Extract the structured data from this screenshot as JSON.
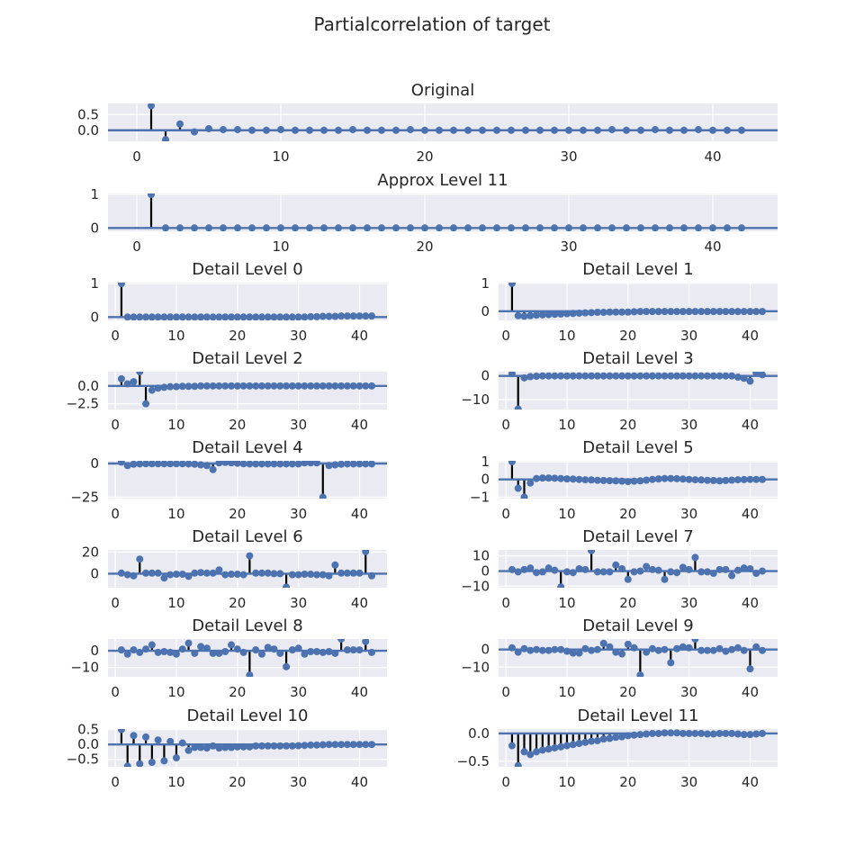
{
  "figure": {
    "title": "Partialcorrelation of target"
  },
  "style": {
    "panel_bg": "#EAEAF2",
    "grid": "#FFFFFF",
    "marker": "#4C72B0",
    "baseline": "#4C72B0",
    "stem": "#000000"
  },
  "chart_data": [
    {
      "type": "stem",
      "title": "Original",
      "xlim": [
        -2,
        44.5
      ],
      "ylim": [
        -0.35,
        0.85
      ],
      "xticks": [
        0,
        10,
        20,
        30,
        40
      ],
      "yticks": [
        0.5,
        0.0
      ],
      "ytick_labels": [
        "0.5",
        "0.0"
      ],
      "x_start": 1,
      "values": [
        0.78,
        -0.3,
        0.2,
        -0.05,
        0.05,
        0.02,
        0.02,
        0.0,
        0.0,
        0.02,
        0.0,
        0.0,
        0.0,
        0.0,
        0.02,
        0.0,
        0.0,
        0.0,
        0.02,
        0.0,
        0.0,
        0.0,
        0.0,
        0.0,
        0.0,
        0.0,
        0.0,
        0.0,
        0.0,
        0.0,
        0.0,
        0.0,
        0.02,
        0.0,
        0.0,
        0.02,
        0.0,
        0.0,
        0.02,
        0.0,
        0.0,
        0.0
      ]
    },
    {
      "type": "stem",
      "title": "Approx Level 11",
      "xlim": [
        -2,
        44.5
      ],
      "ylim": [
        -0.1,
        1.03
      ],
      "xticks": [
        0,
        10,
        20,
        30,
        40
      ],
      "yticks": [
        1,
        0
      ],
      "ytick_labels": [
        "1",
        "0"
      ],
      "x_start": 1,
      "values": [
        1.0,
        0,
        0,
        0,
        0,
        0,
        0,
        0,
        0,
        0,
        0,
        0,
        0,
        0,
        0,
        0,
        0,
        0,
        0,
        0,
        0,
        0,
        0,
        0,
        0,
        0,
        0,
        0,
        0,
        0,
        0,
        0,
        0,
        0,
        0,
        0,
        0,
        0,
        0,
        0,
        0,
        0
      ]
    },
    {
      "type": "stem",
      "title": "Detail Level 0",
      "xlim": [
        -1.2,
        44.5
      ],
      "ylim": [
        -0.1,
        1.03
      ],
      "xticks": [
        0,
        10,
        20,
        30,
        40
      ],
      "yticks": [
        1,
        0
      ],
      "ytick_labels": [
        "1",
        "0"
      ],
      "x_start": 1,
      "values": [
        1.0,
        0,
        0,
        0,
        0,
        0,
        0,
        0,
        0,
        0,
        0,
        0,
        0,
        0,
        0,
        0,
        0,
        0,
        0,
        0,
        0,
        0,
        0,
        0,
        0,
        0,
        0,
        0,
        0,
        0,
        0,
        0.01,
        0.01,
        0.02,
        0.02,
        0.02,
        0.03,
        0.03,
        0.03,
        0.03,
        0.03,
        0.03
      ]
    },
    {
      "type": "stem",
      "title": "Detail Level 1",
      "xlim": [
        -1.2,
        44.5
      ],
      "ylim": [
        -0.33,
        1.03
      ],
      "xticks": [
        0,
        10,
        20,
        30,
        40
      ],
      "yticks": [
        1,
        0
      ],
      "ytick_labels": [
        "1",
        "0"
      ],
      "x_start": 1,
      "values": [
        1.0,
        -0.16,
        -0.18,
        -0.16,
        -0.14,
        -0.13,
        -0.12,
        -0.11,
        -0.1,
        -0.09,
        -0.08,
        -0.07,
        -0.06,
        -0.05,
        -0.04,
        -0.04,
        -0.03,
        -0.03,
        -0.03,
        -0.03,
        -0.02,
        -0.01,
        -0.01,
        -0.01,
        -0.01,
        -0.01,
        -0.01,
        -0.01,
        -0.01,
        -0.01,
        -0.01,
        -0.01,
        -0.01,
        -0.01,
        -0.01,
        -0.01,
        -0.01,
        -0.01,
        -0.01,
        -0.01,
        -0.01,
        -0.01
      ]
    },
    {
      "type": "stem",
      "title": "Detail Level 2",
      "xlim": [
        -1.2,
        44.5
      ],
      "ylim": [
        -3.3,
        2.0
      ],
      "xticks": [
        0,
        10,
        20,
        30,
        40
      ],
      "yticks": [
        0.0,
        -2.5
      ],
      "ytick_labels": [
        "0.0",
        "−2.5"
      ],
      "x_start": 1,
      "values": [
        1.0,
        0.3,
        0.6,
        2.0,
        -2.5,
        -0.6,
        -0.3,
        -0.2,
        -0.1,
        -0.1,
        -0.05,
        -0.05,
        -0.05,
        0,
        0,
        0,
        0,
        0,
        0,
        0,
        0,
        0,
        0,
        0,
        0,
        0,
        0,
        0,
        0,
        0,
        0,
        0,
        0,
        0,
        0,
        0,
        0,
        0,
        0,
        0,
        0,
        0
      ]
    },
    {
      "type": "stem",
      "title": "Detail Level 3",
      "xlim": [
        -1.2,
        44.5
      ],
      "ylim": [
        -14.2,
        1.8
      ],
      "xticks": [
        0,
        10,
        20,
        30,
        40
      ],
      "yticks": [
        0,
        -10
      ],
      "ytick_labels": [
        "0",
        "−10"
      ],
      "x_start": 1,
      "values": [
        1.0,
        -14.0,
        -0.8,
        -0.3,
        -0.1,
        0,
        0,
        0,
        0,
        0,
        0,
        0,
        0,
        0,
        0,
        0,
        0,
        0,
        0,
        0,
        0,
        0,
        0,
        0,
        0,
        0,
        0,
        0,
        0,
        0,
        0,
        0,
        0,
        0,
        0,
        0,
        0,
        -0.5,
        -1.0,
        -2.2,
        1.3,
        0.5
      ]
    },
    {
      "type": "stem",
      "title": "Detail Level 4",
      "xlim": [
        -1.2,
        44.5
      ],
      "ylim": [
        -26,
        2.0
      ],
      "xticks": [
        0,
        10,
        20,
        30,
        40
      ],
      "yticks": [
        0,
        -25
      ],
      "ytick_labels": [
        "0",
        "−25"
      ],
      "x_start": 1,
      "values": [
        1.0,
        -1.5,
        -0.5,
        -0.3,
        -0.2,
        -0.2,
        -0.2,
        -0.2,
        -0.2,
        -0.2,
        -0.2,
        -0.3,
        -0.5,
        -1.0,
        -1.5,
        -4.5,
        0.5,
        0.8,
        0.5,
        0.2,
        -0.2,
        -0.3,
        -0.3,
        -0.3,
        -0.3,
        -0.3,
        -0.3,
        -0.3,
        -0.3,
        -0.3,
        0.5,
        0.5,
        0.5,
        -25.0,
        -1.5,
        -1.0,
        -0.5,
        -0.3,
        -0.3,
        -0.3,
        -0.3,
        -0.3
      ]
    },
    {
      "type": "stem",
      "title": "Detail Level 5",
      "xlim": [
        -1.2,
        44.5
      ],
      "ylim": [
        -1.08,
        1.05
      ],
      "xticks": [
        0,
        10,
        20,
        30,
        40
      ],
      "yticks": [
        1,
        0,
        -1
      ],
      "ytick_labels": [
        "1",
        "0",
        "−1"
      ],
      "x_start": 1,
      "values": [
        1.0,
        -0.5,
        -1.0,
        -0.2,
        0.05,
        0.08,
        0.08,
        0.07,
        0.05,
        0.03,
        0.02,
        0.0,
        -0.02,
        -0.03,
        -0.05,
        -0.06,
        -0.07,
        -0.08,
        -0.1,
        -0.12,
        -0.1,
        -0.08,
        -0.04,
        0.0,
        0.03,
        0.05,
        0.05,
        0.04,
        0.02,
        0.0,
        -0.02,
        -0.03,
        -0.05,
        -0.06,
        -0.08,
        -0.06,
        -0.04,
        -0.02,
        -0.01,
        0.0,
        0.0,
        0.0
      ]
    },
    {
      "type": "stem",
      "title": "Detail Level 6",
      "xlim": [
        -1.2,
        44.5
      ],
      "ylim": [
        -13,
        22
      ],
      "xticks": [
        0,
        10,
        20,
        30,
        40
      ],
      "yticks": [
        20,
        0
      ],
      "ytick_labels": [
        "20",
        "0"
      ],
      "x_start": 1,
      "values": [
        0.5,
        -1.0,
        -2.0,
        13.5,
        0.5,
        0.5,
        0.5,
        -4.0,
        -1.0,
        -0.5,
        -0.5,
        -2.5,
        0.5,
        1.0,
        0.5,
        0.5,
        3.5,
        -1.0,
        -0.5,
        -0.5,
        -1.0,
        16.5,
        0.5,
        0.5,
        0.5,
        0.0,
        0.0,
        -12.5,
        -1.0,
        -1.0,
        -0.5,
        -0.5,
        -1.0,
        -1.0,
        -2.0,
        8.0,
        0.5,
        0.5,
        0.5,
        0.5,
        20.5,
        -2.0
      ]
    },
    {
      "type": "stem",
      "title": "Detail Level 7",
      "xlim": [
        -1.2,
        44.5
      ],
      "ylim": [
        -11,
        14
      ],
      "xticks": [
        0,
        10,
        20,
        30,
        40
      ],
      "yticks": [
        10,
        0,
        -10
      ],
      "ytick_labels": [
        "10",
        "0",
        "−10"
      ],
      "x_start": 1,
      "values": [
        1.0,
        -0.5,
        1.0,
        2.0,
        -1.0,
        -0.5,
        2.0,
        0.5,
        -10.5,
        -0.5,
        -1.0,
        1.5,
        1.0,
        13.5,
        -0.5,
        -0.5,
        -0.5,
        4.0,
        1.5,
        -5.5,
        -0.5,
        0.0,
        3.0,
        1.0,
        0.5,
        -5.5,
        -0.5,
        -1.0,
        2.5,
        1.0,
        9.0,
        -0.5,
        -0.5,
        -1.5,
        1.0,
        1.0,
        -3.0,
        0.5,
        2.0,
        1.5,
        -1.5,
        0.0
      ]
    },
    {
      "type": "stem",
      "title": "Detail Level 8",
      "xlim": [
        -1.2,
        44.5
      ],
      "ylim": [
        -15.5,
        7
      ],
      "xticks": [
        0,
        10,
        20,
        30,
        40
      ],
      "yticks": [
        0,
        -10
      ],
      "ytick_labels": [
        "0",
        "−10"
      ],
      "x_start": 1,
      "values": [
        0.5,
        -2.0,
        0.5,
        -1.0,
        1.0,
        3.5,
        -1.0,
        -0.5,
        -1.0,
        -2.0,
        1.0,
        4.5,
        -1.5,
        2.5,
        1.5,
        -1.5,
        -1.5,
        -0.5,
        3.5,
        1.0,
        -1.0,
        -14.5,
        0.5,
        -2.0,
        2.0,
        1.0,
        -1.5,
        -9.5,
        0.5,
        1.5,
        -2.0,
        -0.5,
        -0.5,
        -1.0,
        -0.5,
        -1.5,
        7.0,
        0.5,
        0.5,
        0.5,
        5.5,
        -1.0
      ]
    },
    {
      "type": "stem",
      "title": "Detail Level 9",
      "xlim": [
        -1.2,
        44.5
      ],
      "ylim": [
        -15.5,
        6
      ],
      "xticks": [
        0,
        10,
        20,
        30,
        40
      ],
      "yticks": [
        0,
        -10
      ],
      "ytick_labels": [
        "0",
        "−10"
      ],
      "x_start": 1,
      "values": [
        1.0,
        -1.5,
        0.5,
        -0.5,
        0.0,
        -0.5,
        -0.5,
        0.0,
        0.0,
        -1.0,
        -2.0,
        -2.0,
        0.5,
        -0.5,
        0.0,
        3.5,
        1.5,
        -1.5,
        -2.5,
        3.0,
        1.0,
        -14.5,
        -1.5,
        0.5,
        -0.5,
        0.0,
        -7.5,
        0.5,
        1.5,
        1.0,
        6.0,
        -0.5,
        -0.5,
        -0.5,
        0.5,
        -1.0,
        0.0,
        1.0,
        -0.5,
        -11.0,
        1.5,
        -0.5
      ]
    },
    {
      "type": "stem",
      "title": "Detail Level 10",
      "xlim": [
        -1.2,
        44.5
      ],
      "ylim": [
        -0.75,
        0.52
      ],
      "xticks": [
        0,
        10,
        20,
        30,
        40
      ],
      "yticks": [
        0.5,
        0.0,
        -0.5
      ],
      "ytick_labels": [
        "0.5",
        "0.0",
        "−0.5"
      ],
      "x_start": 1,
      "values": [
        0.5,
        -0.73,
        0.3,
        -0.65,
        0.25,
        -0.6,
        0.15,
        -0.55,
        0.1,
        -0.45,
        0.05,
        -0.2,
        -0.1,
        -0.1,
        -0.12,
        -0.05,
        -0.12,
        -0.1,
        -0.1,
        -0.08,
        -0.08,
        -0.08,
        -0.05,
        -0.05,
        -0.05,
        -0.05,
        -0.05,
        -0.05,
        -0.05,
        -0.04,
        -0.03,
        -0.02,
        -0.02,
        -0.01,
        0.0,
        0.0,
        0.0,
        0.0,
        0.0,
        0.0,
        0.0,
        0.0
      ]
    },
    {
      "type": "stem",
      "title": "Detail Level 11",
      "xlim": [
        -1.2,
        44.5
      ],
      "ylim": [
        -0.6,
        0.08
      ],
      "xticks": [
        0,
        10,
        20,
        30,
        40
      ],
      "yticks": [
        0.0,
        -0.5
      ],
      "ytick_labels": [
        "0.0",
        "−0.5"
      ],
      "x_start": 1,
      "values": [
        -0.22,
        -0.58,
        -0.33,
        -0.38,
        -0.33,
        -0.3,
        -0.28,
        -0.26,
        -0.24,
        -0.22,
        -0.2,
        -0.18,
        -0.16,
        -0.14,
        -0.13,
        -0.1,
        -0.09,
        -0.07,
        -0.06,
        -0.04,
        -0.03,
        -0.02,
        -0.01,
        0.0,
        0.0,
        0.01,
        0.01,
        0.01,
        0.0,
        0.0,
        0.0,
        0.0,
        -0.01,
        -0.01,
        0.0,
        0.0,
        0.0,
        -0.01,
        -0.02,
        -0.02,
        -0.01,
        0.0
      ]
    }
  ]
}
